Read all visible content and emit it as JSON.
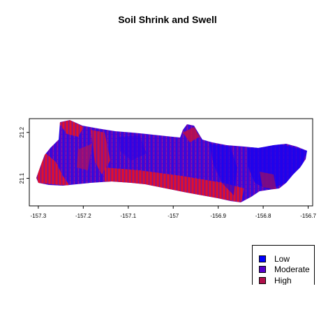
{
  "title": "Soil Shrink and Swell",
  "map": {
    "x_ticks": [
      "-157.3",
      "-157.2",
      "-157.1",
      "-157",
      "-156.9",
      "-156.8",
      "-156.7"
    ],
    "y_ticks": [
      "21.1",
      "21.2"
    ],
    "x_range": [
      -157.32,
      -156.69
    ],
    "y_range": [
      21.04,
      21.23
    ],
    "x_tick_values": [
      -157.3,
      -157.2,
      -157.1,
      -157.0,
      -156.9,
      -156.8,
      -156.7
    ],
    "y_tick_values": [
      21.1,
      21.2
    ]
  },
  "legend": {
    "items": [
      {
        "label": "Low",
        "color": "#0000ff"
      },
      {
        "label": "Moderate",
        "color": "#5500cc"
      },
      {
        "label": "High",
        "color": "#b0104a"
      }
    ]
  },
  "colors": {
    "low": "#0000ff",
    "moderate": "#5a00c8",
    "high": "#d0103a",
    "high_alt": "#ff0000"
  }
}
